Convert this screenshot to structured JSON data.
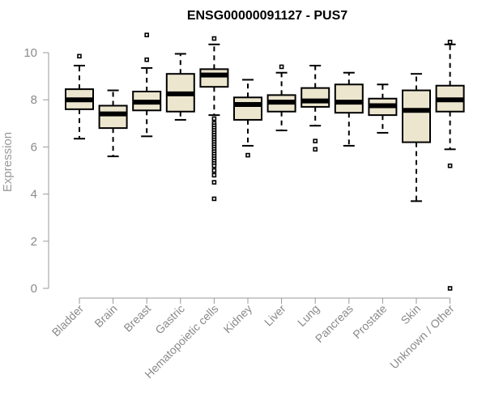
{
  "chart_data": {
    "type": "boxplot",
    "title": "ENSG00000091127 - PUS7",
    "xlabel": "",
    "ylabel": "Expression",
    "ylim": [
      0,
      10.5
    ],
    "yticks": [
      0,
      2,
      4,
      6,
      8,
      10
    ],
    "grid": false,
    "box_fill": "#ede6cf",
    "categories": [
      "Bladder",
      "Brain",
      "Breast",
      "Gastric",
      "Hematopoietic cells",
      "Kidney",
      "Liver",
      "Lung",
      "Pancreas",
      "Prostate",
      "Skin",
      "Unknown / Other"
    ],
    "boxes": [
      {
        "category": "Bladder",
        "whisker_low": 6.35,
        "q1": 7.6,
        "median": 8.0,
        "q3": 8.45,
        "whisker_high": 9.45,
        "outliers": [
          9.85
        ]
      },
      {
        "category": "Brain",
        "whisker_low": 5.6,
        "q1": 6.8,
        "median": 7.4,
        "q3": 7.75,
        "whisker_high": 8.4,
        "outliers": []
      },
      {
        "category": "Breast",
        "whisker_low": 6.45,
        "q1": 7.55,
        "median": 7.9,
        "q3": 8.35,
        "whisker_high": 9.35,
        "outliers": [
          9.7,
          10.75
        ]
      },
      {
        "category": "Gastric",
        "whisker_low": 7.15,
        "q1": 7.5,
        "median": 8.25,
        "q3": 9.1,
        "whisker_high": 9.95,
        "outliers": []
      },
      {
        "category": "Hematopoietic cells",
        "whisker_low": 7.35,
        "q1": 8.55,
        "median": 9.05,
        "q3": 9.3,
        "whisker_high": 10.35,
        "outliers": [
          10.6,
          7.2,
          7.0,
          6.9,
          6.8,
          6.7,
          6.6,
          6.5,
          6.4,
          6.3,
          6.2,
          6.1,
          6.0,
          5.9,
          5.8,
          5.7,
          5.6,
          5.5,
          5.4,
          5.3,
          5.2,
          5.0,
          4.8,
          4.5,
          3.8
        ]
      },
      {
        "category": "Kidney",
        "whisker_low": 6.05,
        "q1": 7.15,
        "median": 7.8,
        "q3": 8.1,
        "whisker_high": 8.85,
        "outliers": [
          5.65
        ]
      },
      {
        "category": "Liver",
        "whisker_low": 6.7,
        "q1": 7.5,
        "median": 7.9,
        "q3": 8.2,
        "whisker_high": 9.15,
        "outliers": [
          9.4
        ]
      },
      {
        "category": "Lung",
        "whisker_low": 6.9,
        "q1": 7.7,
        "median": 7.95,
        "q3": 8.5,
        "whisker_high": 9.45,
        "outliers": [
          6.25,
          5.9
        ]
      },
      {
        "category": "Pancreas",
        "whisker_low": 6.05,
        "q1": 7.45,
        "median": 7.9,
        "q3": 8.65,
        "whisker_high": 9.15,
        "outliers": []
      },
      {
        "category": "Prostate",
        "whisker_low": 6.6,
        "q1": 7.35,
        "median": 7.75,
        "q3": 8.05,
        "whisker_high": 8.65,
        "outliers": []
      },
      {
        "category": "Skin",
        "whisker_low": 3.7,
        "q1": 6.2,
        "median": 7.55,
        "q3": 8.4,
        "whisker_high": 9.1,
        "outliers": []
      },
      {
        "category": "Unknown / Other",
        "whisker_low": 5.9,
        "q1": 7.5,
        "median": 8.0,
        "q3": 8.6,
        "whisker_high": 10.35,
        "outliers": [
          10.45,
          5.2,
          0.0
        ]
      }
    ]
  }
}
